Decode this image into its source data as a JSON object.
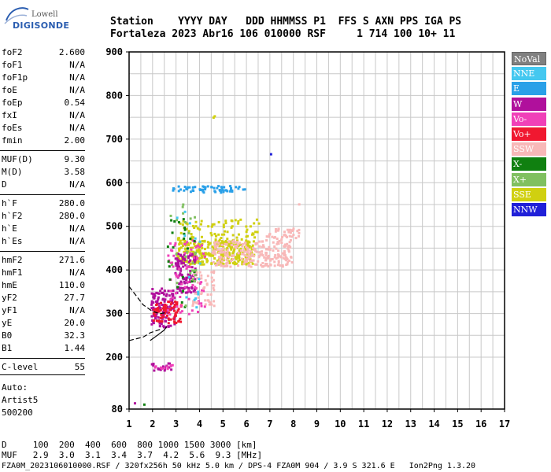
{
  "logo": {
    "line1": "Lowell",
    "line2": "DIGISONDE"
  },
  "header": {
    "row1": "Station    YYYY DAY   DDD HHMMSS P1  FFS S AXN PPS IGA PS",
    "row2": "Fortaleza 2023 Abr16 106 010000 RSF     1 714 100 10+ 11"
  },
  "params": [
    {
      "name": "foF2",
      "value": "2.600"
    },
    {
      "name": "foF1",
      "value": "N/A"
    },
    {
      "name": "foF1p",
      "value": "N/A"
    },
    {
      "name": "foE",
      "value": "N/A"
    },
    {
      "name": "foEp",
      "value": "0.54"
    },
    {
      "name": "fxI",
      "value": "N/A"
    },
    {
      "name": "foEs",
      "value": "N/A"
    },
    {
      "name": "fmin",
      "value": "2.00"
    },
    {
      "name": "MUF(D)",
      "value": "9.30"
    },
    {
      "name": "M(D)",
      "value": "3.58"
    },
    {
      "name": "D",
      "value": "N/A"
    },
    {
      "name": "h`F",
      "value": "280.0"
    },
    {
      "name": "h`F2",
      "value": "280.0"
    },
    {
      "name": "h`E",
      "value": "N/A"
    },
    {
      "name": "h`Es",
      "value": "N/A"
    },
    {
      "name": "hmF2",
      "value": "271.6"
    },
    {
      "name": "hmF1",
      "value": "N/A"
    },
    {
      "name": "hmE",
      "value": "110.0"
    },
    {
      "name": "yF2",
      "value": "27.7"
    },
    {
      "name": "yF1",
      "value": "N/A"
    },
    {
      "name": "yE",
      "value": "20.0"
    },
    {
      "name": "B0",
      "value": "32.3"
    },
    {
      "name": "B1",
      "value": "1.44"
    },
    {
      "name": "C-level",
      "value": "55"
    }
  ],
  "auto": {
    "line1": "Auto:",
    "line2": "Artist5",
    "line3": "500200"
  },
  "legend": [
    {
      "label": "NoVal",
      "color": "#808080"
    },
    {
      "label": "NNE",
      "color": "#44c8f0"
    },
    {
      "label": "E",
      "color": "#2aa0e8"
    },
    {
      "label": "W",
      "color": "#b0109c"
    },
    {
      "label": "Vo-",
      "color": "#f040b8"
    },
    {
      "label": "Vo+",
      "color": "#f01830"
    },
    {
      "label": "SSW",
      "color": "#f8b8b8"
    },
    {
      "label": "X-",
      "color": "#108010"
    },
    {
      "label": "X+",
      "color": "#80c060"
    },
    {
      "label": "SSE",
      "color": "#d0d010"
    },
    {
      "label": "NNW",
      "color": "#2020d8"
    }
  ],
  "footer": {
    "line1": "D     100  200  400  600  800 1000 1500 3000 [km]",
    "line2": "MUF   2.9  3.0  3.1  3.4  3.7  4.2  5.6  9.3 [MHz]",
    "line3": "FZA0M_2023106010000.RSF / 320fx256h 50 kHz 5.0 km / DPS-4 FZA0M 904 / 3.9 S 321.6 E   Ion2Png 1.3.20"
  },
  "chart_data": {
    "type": "scatter",
    "x": {
      "min": 1,
      "max": 17,
      "ticks": [
        1,
        2,
        3,
        4,
        5,
        6,
        7,
        8,
        9,
        10,
        11,
        12,
        13,
        14,
        15,
        16,
        17
      ]
    },
    "y": {
      "min": 80,
      "max": 900,
      "ticks": [
        80,
        200,
        300,
        400,
        500,
        600,
        700,
        800,
        900
      ]
    },
    "grid": true,
    "clusters": [
      {
        "name": "E",
        "fmin": 2.8,
        "fmax": 5.9,
        "hmin": 580,
        "hmax": 595,
        "n": 60,
        "color": "#2aa0e8"
      },
      {
        "name": "SSE",
        "fmin": 3.0,
        "fmax": 6.3,
        "hmin": 415,
        "hmax": 470,
        "n": 320,
        "color": "#d0d010"
      },
      {
        "name": "SSE",
        "fmin": 3.0,
        "fmax": 6.5,
        "hmin": 470,
        "hmax": 520,
        "n": 80,
        "color": "#d0d010"
      },
      {
        "name": "SSW",
        "fmin": 4.5,
        "fmax": 7.9,
        "hmin": 410,
        "hmax": 470,
        "n": 240,
        "color": "#f8b8b8"
      },
      {
        "name": "SSW",
        "fmin": 6.8,
        "fmax": 8.2,
        "hmin": 470,
        "hmax": 500,
        "n": 40,
        "color": "#f8b8b8"
      },
      {
        "name": "W",
        "fmin": 2.9,
        "fmax": 3.8,
        "hmin": 350,
        "hmax": 440,
        "n": 120,
        "color": "#b0109c"
      },
      {
        "name": "W",
        "fmin": 1.9,
        "fmax": 2.9,
        "hmin": 270,
        "hmax": 360,
        "n": 120,
        "color": "#b0109c"
      },
      {
        "name": "Vo+",
        "fmin": 2.0,
        "fmax": 3.2,
        "hmin": 280,
        "hmax": 330,
        "n": 80,
        "color": "#f01830"
      },
      {
        "name": "Vo-",
        "fmin": 2.6,
        "fmax": 4.2,
        "hmin": 300,
        "hmax": 470,
        "n": 70,
        "color": "#f040b8"
      },
      {
        "name": "SSW",
        "fmin": 3.6,
        "fmax": 4.6,
        "hmin": 320,
        "hmax": 400,
        "n": 50,
        "color": "#f8b8b8"
      },
      {
        "name": "X-",
        "fmin": 2.5,
        "fmax": 4.0,
        "hmin": 300,
        "hmax": 520,
        "n": 25,
        "color": "#108010"
      },
      {
        "name": "X+",
        "fmin": 2.7,
        "fmax": 3.8,
        "hmin": 320,
        "hmax": 560,
        "n": 25,
        "color": "#80c060"
      },
      {
        "name": "NNE",
        "fmin": 2.9,
        "fmax": 4.0,
        "hmin": 300,
        "hmax": 600,
        "n": 15,
        "color": "#44c8f0"
      },
      {
        "name": "W",
        "fmin": 1.9,
        "fmax": 2.8,
        "hmin": 170,
        "hmax": 190,
        "n": 20,
        "color": "#b0109c"
      },
      {
        "name": "Vo-",
        "fmin": 2.0,
        "fmax": 2.9,
        "hmin": 175,
        "hmax": 185,
        "n": 10,
        "color": "#f040b8"
      }
    ],
    "points": [
      {
        "f": 4.55,
        "h": 752,
        "color": "#d0d010"
      },
      {
        "f": 4.6,
        "h": 755,
        "color": "#d0d010"
      },
      {
        "f": 7.0,
        "h": 668,
        "color": "#2020d8"
      },
      {
        "f": 1.2,
        "h": 96,
        "color": "#b0109c"
      },
      {
        "f": 1.6,
        "h": 93,
        "color": "#108010"
      },
      {
        "f": 8.2,
        "h": 553,
        "color": "#f8b8b8"
      }
    ],
    "traces": [
      {
        "name": "profile-dashed",
        "points": [
          [
            1.0,
            362
          ],
          [
            1.6,
            320
          ],
          [
            2.0,
            305
          ],
          [
            2.3,
            300
          ],
          [
            2.6,
            302
          ]
        ]
      },
      {
        "name": "profile-solid",
        "points": [
          [
            1.9,
            238
          ],
          [
            2.2,
            250
          ],
          [
            2.5,
            262
          ],
          [
            2.6,
            270
          ]
        ]
      },
      {
        "name": "profile-dashed-lower",
        "points": [
          [
            1.0,
            238
          ],
          [
            1.6,
            246
          ],
          [
            1.9,
            256
          ],
          [
            2.4,
            265
          ]
        ]
      }
    ]
  }
}
